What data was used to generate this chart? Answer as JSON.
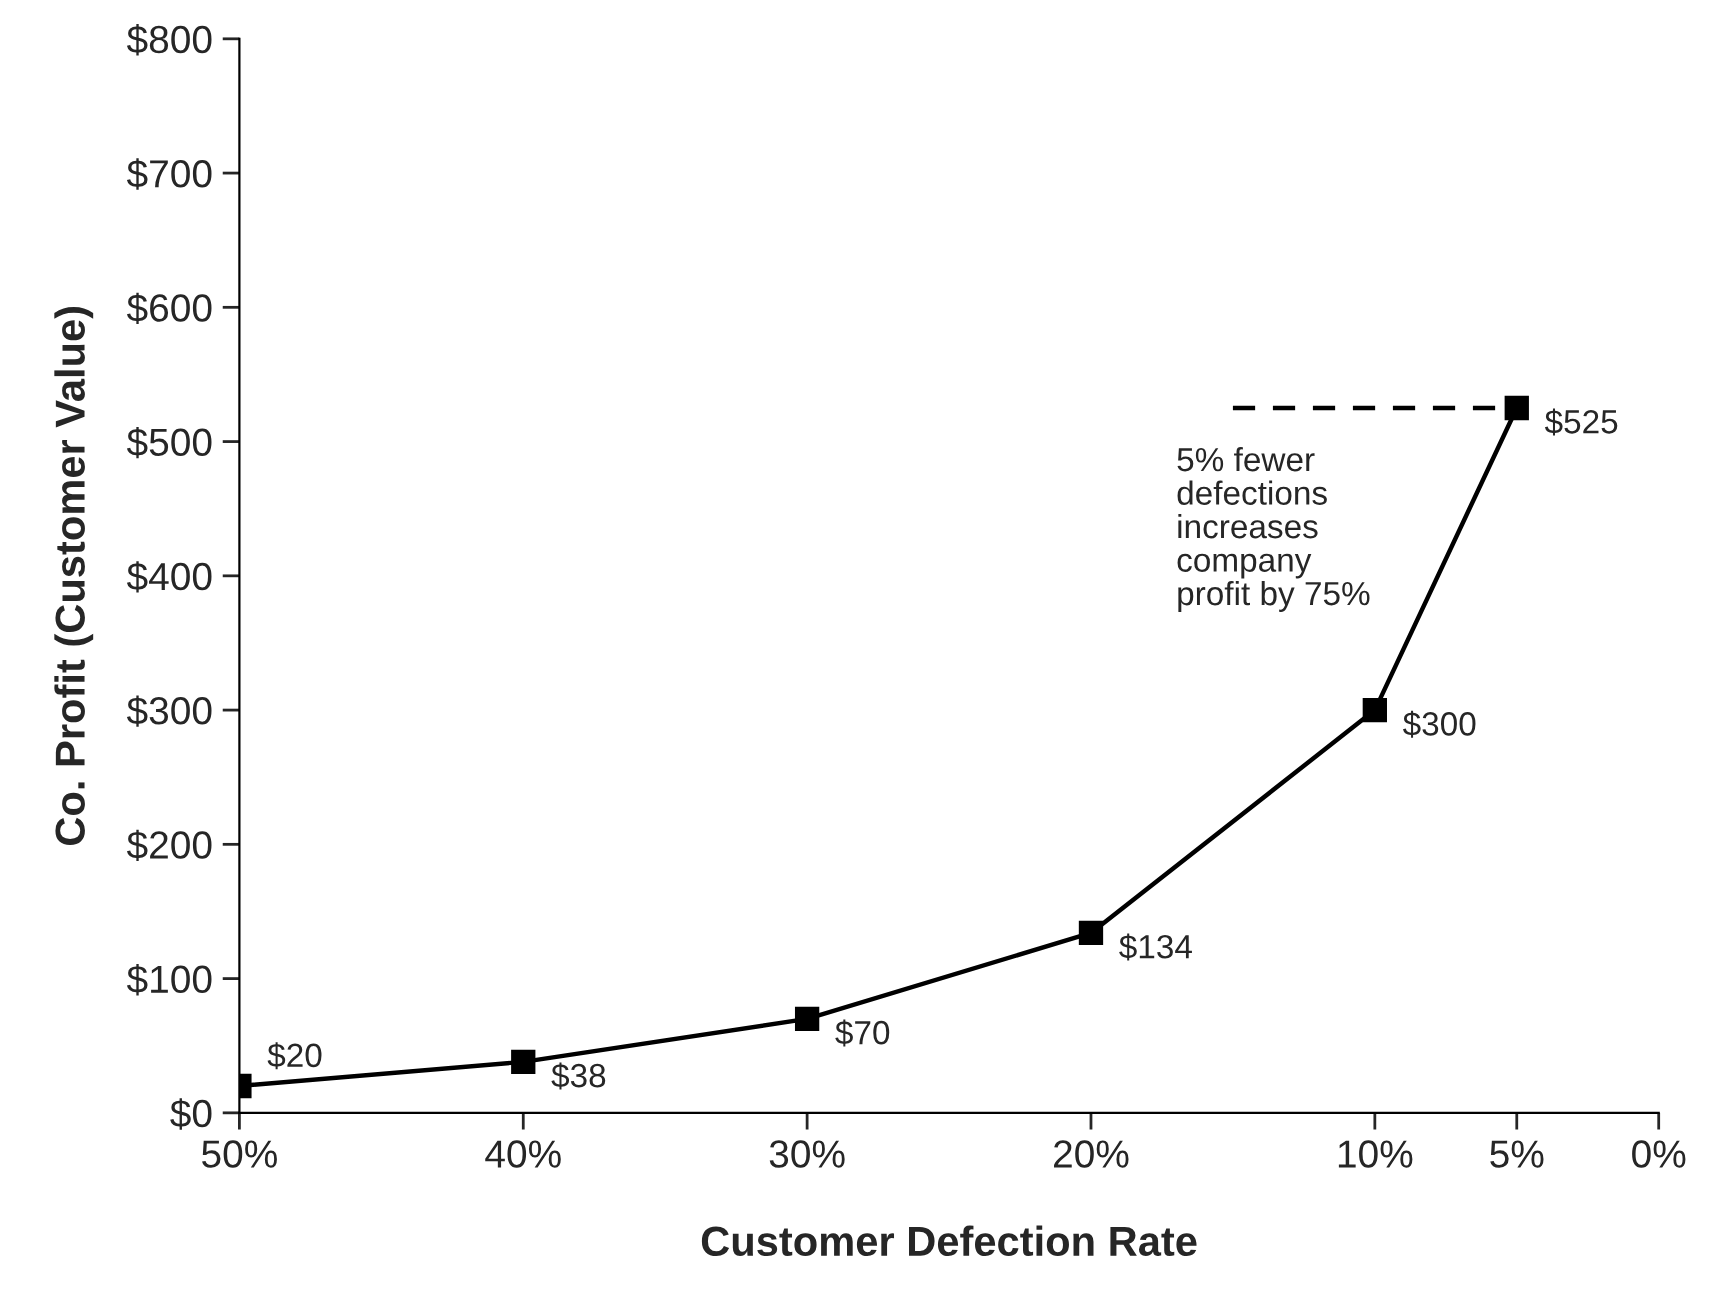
{
  "chart_data": {
    "type": "line",
    "xlabel": "Customer Defection Rate",
    "ylabel": "Co. Profit (Customer Value)",
    "x": [
      50,
      40,
      30,
      20,
      10,
      5
    ],
    "series": [
      {
        "color": "#000000",
        "values": [
          20,
          38,
          70,
          134,
          300,
          525
        ],
        "value_labels": [
          "$20",
          "$38",
          "$70",
          "$134",
          "$300",
          "$525"
        ],
        "marker": "square",
        "line_style": "solid"
      },
      {
        "type": "line",
        "color": "#000000",
        "x": [
          15,
          5
        ],
        "values": [
          525,
          525
        ],
        "marker": "none",
        "line_style": "dashed"
      }
    ],
    "xlim": [
      50,
      0
    ],
    "xticks": [
      {
        "value": 50,
        "label": "50%"
      },
      {
        "value": 40,
        "label": "40%"
      },
      {
        "value": 30,
        "label": "30%"
      },
      {
        "value": 20,
        "label": "20%"
      },
      {
        "value": 10,
        "label": "10%"
      },
      {
        "value": 5,
        "label": "5%"
      },
      {
        "value": 0,
        "label": "0%"
      }
    ],
    "ylim": [
      0,
      800
    ],
    "yticks": [
      {
        "value": 0,
        "label": "$0"
      },
      {
        "value": 100,
        "label": "$100"
      },
      {
        "value": 200,
        "label": "$200"
      },
      {
        "value": 300,
        "label": "$300"
      },
      {
        "value": 400,
        "label": "$400"
      },
      {
        "value": 500,
        "label": "$500"
      },
      {
        "value": 600,
        "label": "$600"
      },
      {
        "value": 700,
        "label": "$700"
      },
      {
        "value": 800,
        "label": "$800"
      }
    ],
    "grid": false,
    "legend": false,
    "annotations": [
      "5% fewer\ndefections\nincreases\ncompany\nprofit by 75%"
    ]
  }
}
